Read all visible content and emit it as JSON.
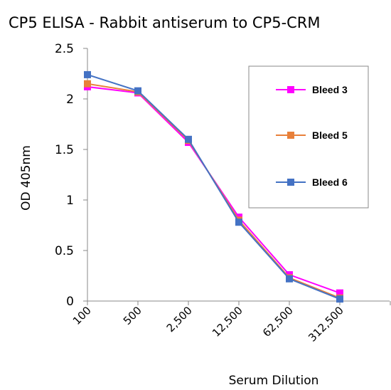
{
  "chart_data": {
    "type": "line",
    "title": "CP5 ELISA - Rabbit antiserum to CP5-CRM",
    "xlabel": "Serum Dilution",
    "ylabel": "OD 405nm",
    "categories": [
      "100",
      "500",
      "2,500",
      "12,500",
      "62,500",
      "312,500"
    ],
    "yticks": [
      "0",
      "0.5",
      "1",
      "1.5",
      "2",
      "2.5"
    ],
    "ylim": [
      0,
      2.5
    ],
    "grid": false,
    "legend": "top-right",
    "series": [
      {
        "name": "Bleed 3",
        "color": "#ff00ff",
        "values": [
          2.12,
          2.06,
          1.57,
          0.83,
          0.26,
          0.08
        ]
      },
      {
        "name": "Bleed 5",
        "color": "#e8803a",
        "values": [
          2.15,
          2.07,
          1.59,
          0.8,
          0.23,
          0.03
        ]
      },
      {
        "name": "Bleed 6",
        "color": "#4472c4",
        "values": [
          2.24,
          2.08,
          1.6,
          0.78,
          0.22,
          0.02
        ]
      }
    ]
  }
}
